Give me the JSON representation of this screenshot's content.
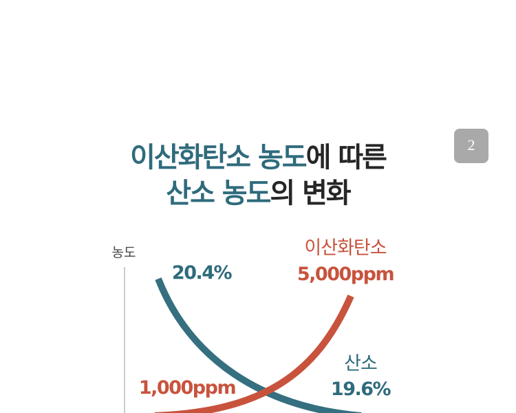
{
  "badge": "2",
  "title": {
    "line1": [
      "이산화탄소 농도",
      "에 따른"
    ],
    "line2": [
      "산소 농도",
      "의 변화"
    ]
  },
  "chart": {
    "y_axis_label": "농도",
    "oxygen": {
      "name": "산소",
      "start": "20.4%",
      "end": "19.6%"
    },
    "co2": {
      "name": "이산화탄소",
      "start": "1,000ppm",
      "end": "5,000ppm"
    }
  }
}
